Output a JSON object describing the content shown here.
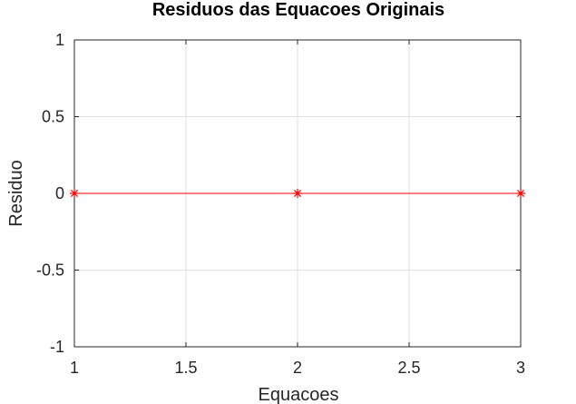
{
  "chart_data": {
    "type": "line",
    "title": "Residuos das Equacoes Originais",
    "xlabel": "Equacoes",
    "ylabel": "Residuo",
    "xlim": [
      1,
      3
    ],
    "ylim": [
      -1,
      1
    ],
    "xticks": [
      1,
      1.5,
      2,
      2.5,
      3
    ],
    "xtick_labels": [
      "1",
      "1.5",
      "2",
      "2.5",
      "3"
    ],
    "yticks": [
      -1,
      -0.5,
      0,
      0.5,
      1
    ],
    "ytick_labels": [
      "-1",
      "-0.5",
      "0",
      "0.5",
      "1"
    ],
    "grid": true,
    "series": [
      {
        "x": [
          1,
          2,
          3
        ],
        "y": [
          0,
          0,
          0
        ],
        "color": "#ff0000",
        "marker": "asterisk"
      }
    ]
  }
}
